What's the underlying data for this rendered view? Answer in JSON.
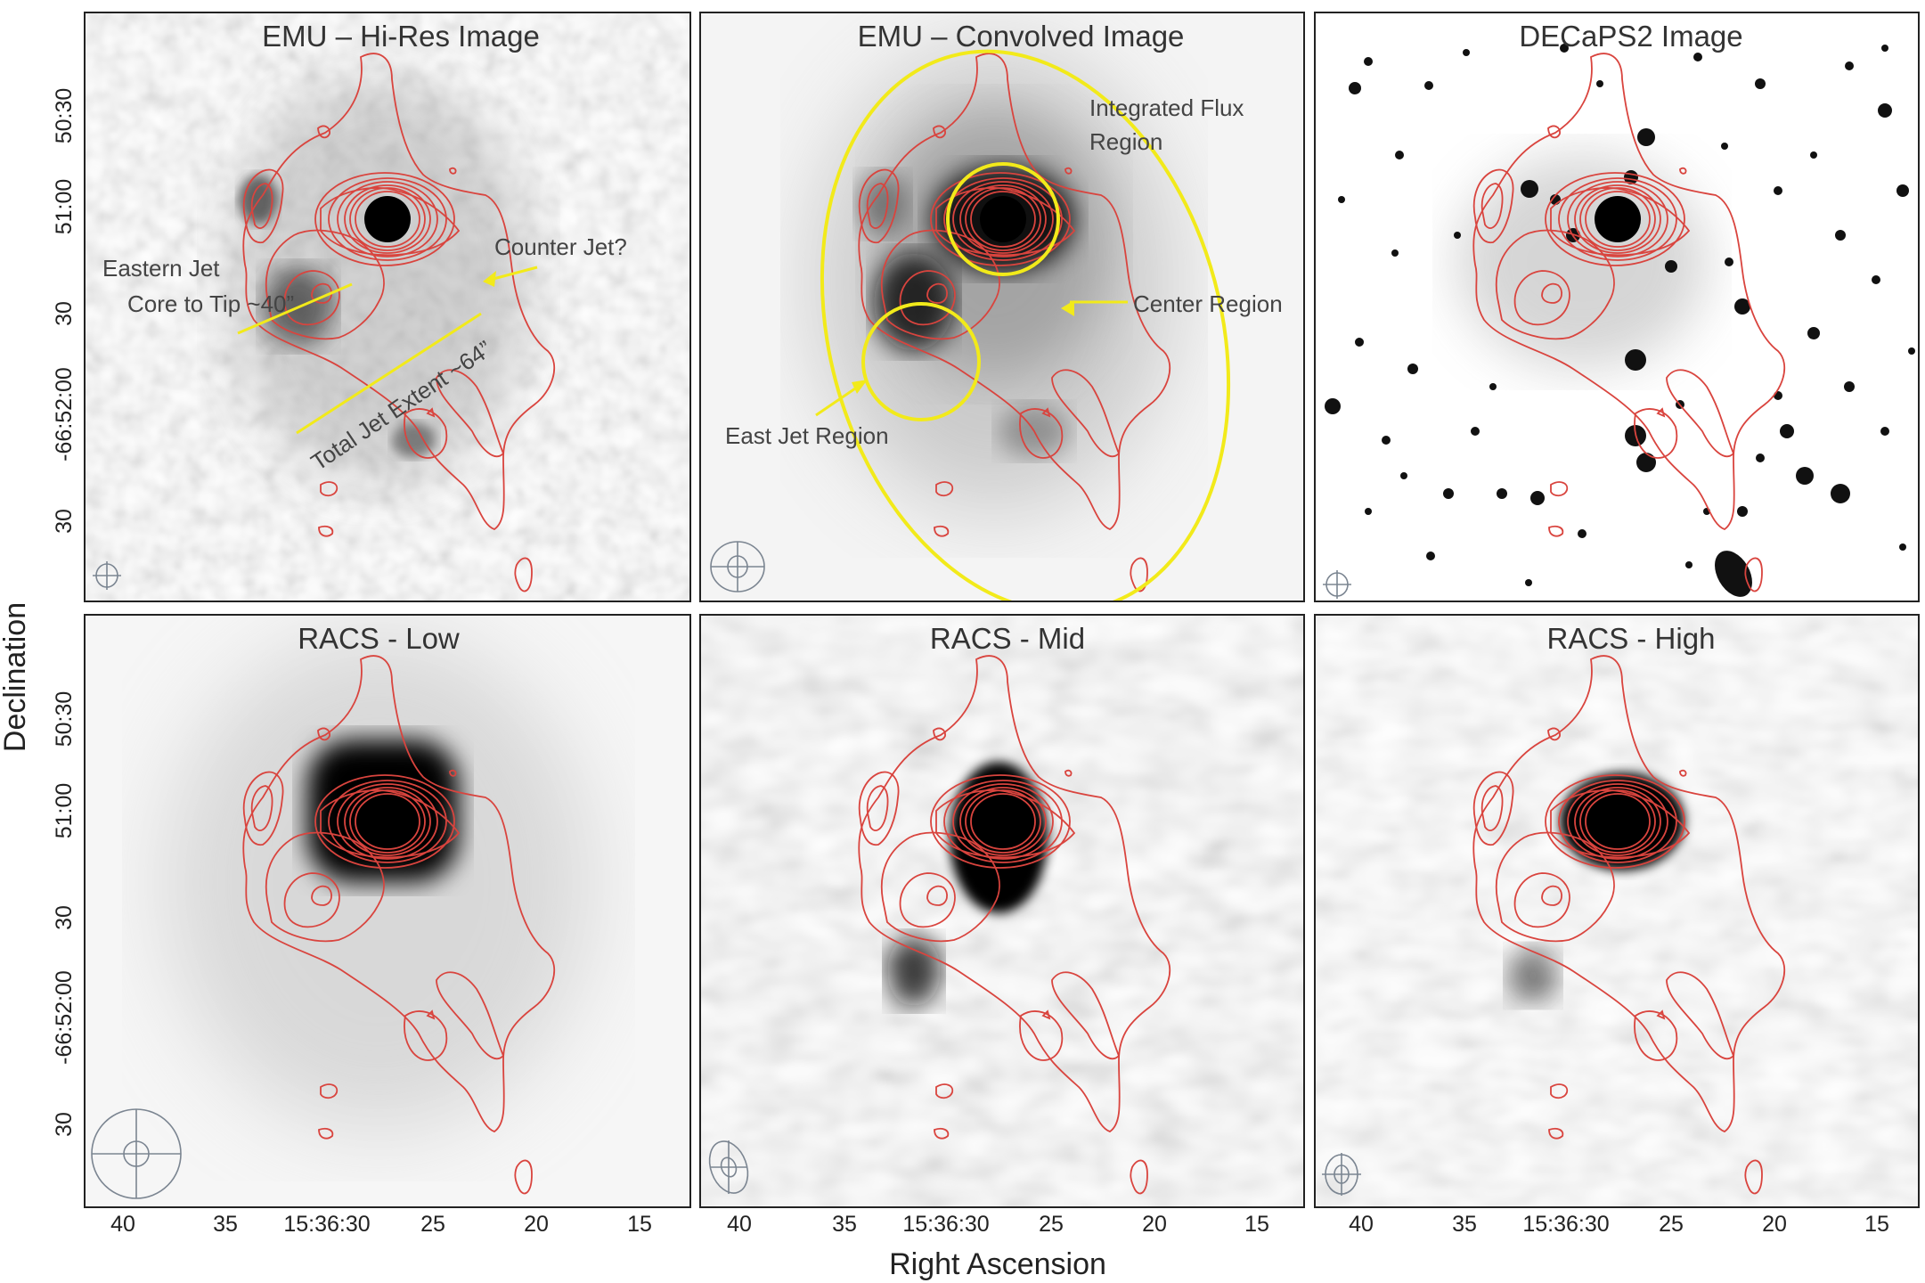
{
  "figure": {
    "axes": {
      "x_title": "Right Ascension",
      "y_title": "Declination",
      "x_ticks": [
        "40",
        "35",
        "15:36:30",
        "25",
        "20",
        "15"
      ],
      "y_ticks": [
        "50:30",
        "51:00",
        "30",
        "-66:52:00",
        "30"
      ]
    },
    "panels": [
      {
        "id": "emu-hires",
        "title": "EMU – Hi-Res Image"
      },
      {
        "id": "emu-convolved",
        "title": "EMU – Convolved Image"
      },
      {
        "id": "decaps2",
        "title": "DECaPS2 Image"
      },
      {
        "id": "racs-low",
        "title": "RACS - Low"
      },
      {
        "id": "racs-mid",
        "title": "RACS - Mid"
      },
      {
        "id": "racs-high",
        "title": "RACS - High"
      }
    ],
    "annotations": {
      "eastern_jet_line1": "Eastern Jet",
      "eastern_jet_line2": "Core to Tip ~40”",
      "counter_jet": "Counter Jet?",
      "total_jet": "Total Jet Extent ~64”",
      "integrated_flux_line1": "Integrated Flux",
      "integrated_flux_line2": "Region",
      "center_region": "Center Region",
      "east_jet_region": "East Jet Region"
    },
    "colors": {
      "contour": "#d9443e",
      "annotation_yellow": "#f2ea1a",
      "beam": "#7b8591"
    }
  }
}
